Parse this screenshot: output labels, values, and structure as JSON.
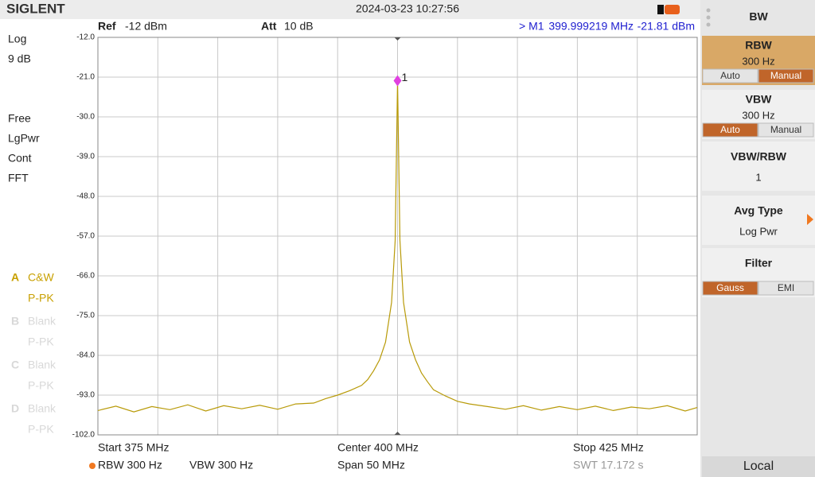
{
  "header": {
    "brand": "SIGLENT",
    "datetime": "2024-03-23 10:27:56"
  },
  "status": {
    "ref_label": "Ref",
    "ref": "-12 dBm",
    "att_label": "Att",
    "att": "10 dB",
    "marker": "> M1",
    "marker_freq": "399.999219 MHz",
    "marker_level": "-21.81 dBm"
  },
  "left": {
    "scale": [
      "Log",
      "9 dB"
    ],
    "mode": [
      "Free",
      "LgPwr",
      "Cont",
      "FFT"
    ],
    "traces": [
      {
        "id": "A",
        "type": "C&W",
        "det": "P-PK",
        "active": true
      },
      {
        "id": "B",
        "type": "Blank",
        "det": "P-PK",
        "active": false
      },
      {
        "id": "C",
        "type": "Blank",
        "det": "P-PK",
        "active": false
      },
      {
        "id": "D",
        "type": "Blank",
        "det": "P-PK",
        "active": false
      }
    ]
  },
  "footer": {
    "start": "Start  375 MHz",
    "center": "Center  400 MHz",
    "stop": "Stop  425 MHz",
    "rbw": "RBW  300 Hz",
    "vbw": "VBW  300 Hz",
    "span": "Span  50 MHz",
    "swt": "SWT  17.172 s"
  },
  "menu": {
    "title": "BW",
    "items": [
      {
        "name": "RBW",
        "value": "300 Hz",
        "options": [
          "Auto",
          "Manual"
        ],
        "selected": 1,
        "highlight": true
      },
      {
        "name": "VBW",
        "value": "300 Hz",
        "options": [
          "Auto",
          "Manual"
        ],
        "selected": 0,
        "highlight": false
      },
      {
        "name": "VBW/RBW",
        "value": "1",
        "highlight": false
      },
      {
        "name": "Avg Type",
        "value": "Log Pwr",
        "highlight": false,
        "arrow": true
      },
      {
        "name": "Filter",
        "options": [
          "Gauss",
          "EMI"
        ],
        "selected": 0,
        "highlight": false
      }
    ],
    "local": "Local"
  },
  "chart_data": {
    "type": "line",
    "color": "#b89a08",
    "grid": true,
    "xlim": [
      375,
      425
    ],
    "ylim": [
      -102,
      -12
    ],
    "xticks": [
      375,
      380,
      385,
      390,
      395,
      400,
      405,
      410,
      415,
      420,
      425
    ],
    "yticks": [
      {
        "value": -12,
        "label": "-12.0"
      },
      {
        "value": -21,
        "label": "-21.0"
      },
      {
        "value": -30,
        "label": "-30.0"
      },
      {
        "value": -39,
        "label": "-39.0"
      },
      {
        "value": -48,
        "label": "-48.0"
      },
      {
        "value": -57,
        "label": "-57.0"
      },
      {
        "value": -66,
        "label": "-66.0"
      },
      {
        "value": -75,
        "label": "-75.0"
      },
      {
        "value": -84,
        "label": "-84.0"
      },
      {
        "value": -93,
        "label": "-93.0"
      },
      {
        "value": -102,
        "label": "-102.0"
      }
    ],
    "x": [
      375,
      376.5,
      378,
      379.5,
      381,
      382.5,
      384,
      385.5,
      387,
      388.5,
      390,
      391.5,
      393,
      394,
      395,
      396,
      397,
      397.5,
      398,
      398.5,
      399,
      399.5,
      399.8,
      400,
      400.2,
      400.5,
      401,
      401.5,
      402,
      402.5,
      403,
      404,
      405,
      406,
      407.5,
      409,
      410.5,
      412,
      413.5,
      415,
      416.5,
      418,
      419.5,
      421,
      422.5,
      424,
      425
    ],
    "values": [
      -96.5,
      -95.5,
      -96.8,
      -95.6,
      -96.3,
      -95.2,
      -96.6,
      -95.4,
      -96.1,
      -95.3,
      -96.2,
      -95.0,
      -94.8,
      -93.8,
      -93.0,
      -92.0,
      -90.8,
      -89.5,
      -87.5,
      -85.0,
      -81.0,
      -72.0,
      -58.0,
      -21.8,
      -58.0,
      -72.0,
      -81.0,
      -85.0,
      -88.0,
      -90.0,
      -91.8,
      -93.2,
      -94.4,
      -95.0,
      -95.6,
      -96.2,
      -95.4,
      -96.4,
      -95.6,
      -96.3,
      -95.5,
      -96.5,
      -95.7,
      -96.1,
      -95.4,
      -96.6,
      -95.8
    ],
    "marker": {
      "label": "1",
      "x": 399.999219,
      "value": -21.81
    }
  }
}
